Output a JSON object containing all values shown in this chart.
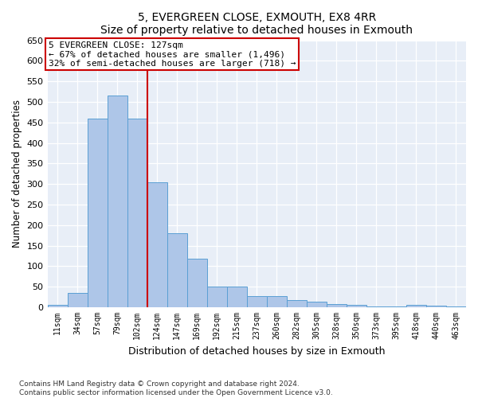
{
  "title": "5, EVERGREEN CLOSE, EXMOUTH, EX8 4RR",
  "subtitle": "Size of property relative to detached houses in Exmouth",
  "xlabel": "Distribution of detached houses by size in Exmouth",
  "ylabel": "Number of detached properties",
  "categories": [
    "11sqm",
    "34sqm",
    "57sqm",
    "79sqm",
    "102sqm",
    "124sqm",
    "147sqm",
    "169sqm",
    "192sqm",
    "215sqm",
    "237sqm",
    "260sqm",
    "282sqm",
    "305sqm",
    "328sqm",
    "350sqm",
    "373sqm",
    "395sqm",
    "418sqm",
    "440sqm",
    "463sqm"
  ],
  "values": [
    5,
    35,
    460,
    515,
    460,
    305,
    180,
    118,
    50,
    50,
    28,
    28,
    18,
    13,
    8,
    5,
    3,
    3,
    5,
    4,
    3
  ],
  "bar_color": "#aec6e8",
  "bar_edge_color": "#5a9fd4",
  "vline_x": 4.5,
  "vline_label": "5 EVERGREEN CLOSE: 127sqm",
  "annotation_line1": "← 67% of detached houses are smaller (1,496)",
  "annotation_line2": "32% of semi-detached houses are larger (718) →",
  "ylim": [
    0,
    650
  ],
  "yticks": [
    0,
    50,
    100,
    150,
    200,
    250,
    300,
    350,
    400,
    450,
    500,
    550,
    600,
    650
  ],
  "vline_color": "#cc0000",
  "annotation_box_color": "#cc0000",
  "bg_color": "#e8eef7",
  "footnote1": "Contains HM Land Registry data © Crown copyright and database right 2024.",
  "footnote2": "Contains public sector information licensed under the Open Government Licence v3.0."
}
